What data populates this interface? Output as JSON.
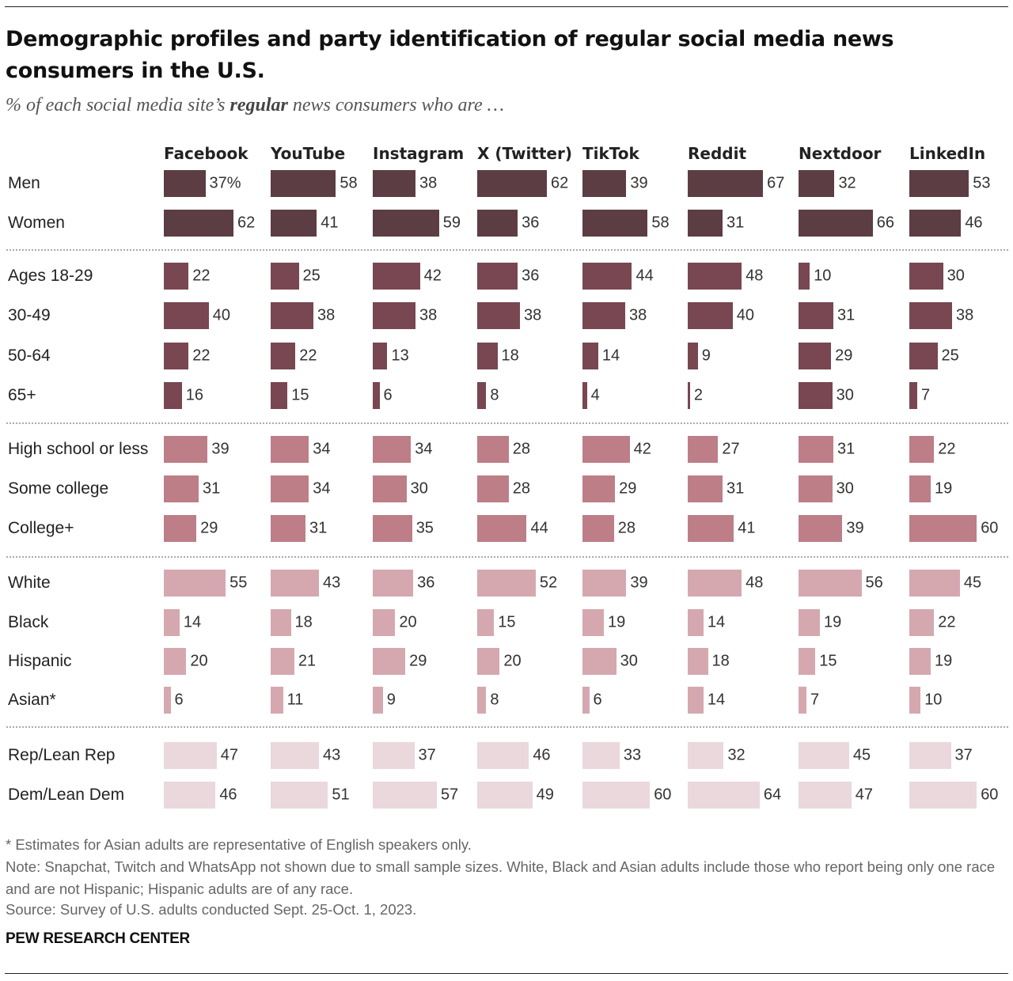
{
  "title": "Demographic profiles and party identification of regular social media news consumers in the U.S.",
  "subtitle_pre": "% of each social media site’s ",
  "subtitle_bold": "regular",
  "subtitle_post": " news consumers who are …",
  "chart_data": {
    "type": "bar",
    "orientation": "horizontal",
    "unit": "%",
    "categories": [
      "Facebook",
      "YouTube",
      "Instagram",
      "X (Twitter)",
      "TikTok",
      "Reddit",
      "Nextdoor",
      "LinkedIn"
    ],
    "groups": [
      {
        "color": "#5c3d43",
        "rows": [
          {
            "label": "Men",
            "values": [
              37,
              58,
              38,
              62,
              39,
              67,
              32,
              53
            ]
          },
          {
            "label": "Women",
            "values": [
              62,
              41,
              59,
              36,
              58,
              31,
              66,
              46
            ]
          }
        ]
      },
      {
        "color": "#784751",
        "rows": [
          {
            "label": "Ages 18-29",
            "values": [
              22,
              25,
              42,
              36,
              44,
              48,
              10,
              30
            ]
          },
          {
            "label": "30-49",
            "values": [
              40,
              38,
              38,
              38,
              38,
              40,
              31,
              38
            ]
          },
          {
            "label": "50-64",
            "values": [
              22,
              22,
              13,
              18,
              14,
              9,
              29,
              25
            ]
          },
          {
            "label": "65+",
            "values": [
              16,
              15,
              6,
              8,
              4,
              2,
              30,
              7
            ]
          }
        ]
      },
      {
        "color": "#bd7e87",
        "rows": [
          {
            "label": "High school or less",
            "values": [
              39,
              34,
              34,
              28,
              42,
              27,
              31,
              22
            ]
          },
          {
            "label": "Some college",
            "values": [
              31,
              34,
              30,
              28,
              29,
              31,
              30,
              19
            ]
          },
          {
            "label": "College+",
            "values": [
              29,
              31,
              35,
              44,
              28,
              41,
              39,
              60
            ]
          }
        ]
      },
      {
        "color": "#d5a8b0",
        "rows": [
          {
            "label": "White",
            "values": [
              55,
              43,
              36,
              52,
              39,
              48,
              56,
              45
            ]
          },
          {
            "label": "Black",
            "values": [
              14,
              18,
              20,
              15,
              19,
              14,
              19,
              22
            ]
          },
          {
            "label": "Hispanic",
            "values": [
              20,
              21,
              29,
              20,
              30,
              18,
              15,
              19
            ]
          },
          {
            "label": "Asian*",
            "values": [
              6,
              11,
              9,
              8,
              6,
              14,
              7,
              10
            ]
          }
        ]
      },
      {
        "color": "#ead8dc",
        "rows": [
          {
            "label": "Rep/Lean Rep",
            "values": [
              47,
              43,
              37,
              46,
              33,
              32,
              45,
              37
            ]
          },
          {
            "label": "Dem/Lean Dem",
            "values": [
              46,
              51,
              57,
              49,
              60,
              64,
              47,
              60
            ]
          }
        ]
      }
    ],
    "first_value_suffix": "%"
  },
  "notes": [
    "* Estimates for Asian adults are representative of English speakers only.",
    "Note: Snapchat, Twitch and WhatsApp not shown due to small sample sizes. White, Black and Asian adults include those who report being only one race and are not Hispanic; Hispanic adults are of any race.",
    "Source: Survey of U.S. adults conducted Sept. 25-Oct. 1, 2023."
  ],
  "brand": "PEW RESEARCH CENTER"
}
